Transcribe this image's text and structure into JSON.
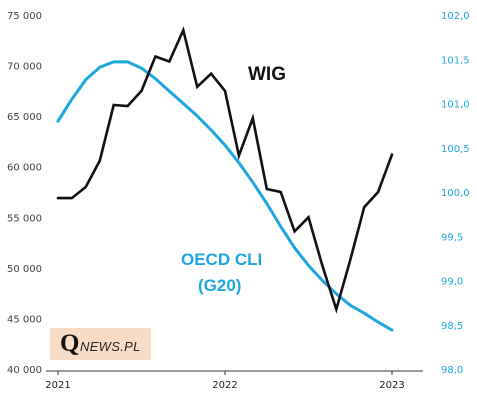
{
  "chart_data": {
    "type": "line",
    "x_ticks": [
      "2021",
      "2022",
      "2023"
    ],
    "y_left": {
      "ticks": [
        "40 000",
        "45 000",
        "50 000",
        "55 000",
        "60 000",
        "65 000",
        "70 000",
        "75 000"
      ],
      "range": [
        40000,
        75000
      ]
    },
    "y_right": {
      "ticks": [
        "98,0",
        "98,5",
        "99,0",
        "99,5",
        "100,0",
        "100,5",
        "101,0",
        "101,5",
        "102,0"
      ],
      "range": [
        98.0,
        102.0
      ]
    },
    "series": [
      {
        "name": "WIG",
        "axis": "left",
        "color": "#111111",
        "x": [
          "2021-01",
          "2021-02",
          "2021-03",
          "2021-04",
          "2021-05",
          "2021-06",
          "2021-07",
          "2021-08",
          "2021-09",
          "2021-10",
          "2021-11",
          "2021-12",
          "2022-01",
          "2022-02",
          "2022-03",
          "2022-04",
          "2022-05",
          "2022-06",
          "2022-07",
          "2022-08",
          "2022-09",
          "2022-10",
          "2022-11",
          "2022-12",
          "2023-01"
        ],
        "values": [
          56900,
          56900,
          58000,
          60600,
          66100,
          66000,
          67500,
          70900,
          70400,
          73500,
          67900,
          69200,
          67500,
          61100,
          64800,
          57800,
          57500,
          53600,
          55000,
          50200,
          45900,
          50800,
          56000,
          57500,
          61200
        ]
      },
      {
        "name": "OECD CLI\n(G20)",
        "axis": "right",
        "color": "#1ea7df",
        "x": [
          "2021-01",
          "2021-02",
          "2021-03",
          "2021-04",
          "2021-05",
          "2021-06",
          "2021-07",
          "2021-08",
          "2021-09",
          "2021-10",
          "2021-11",
          "2021-12",
          "2022-01",
          "2022-02",
          "2022-03",
          "2022-04",
          "2022-05",
          "2022-06",
          "2022-07",
          "2022-08",
          "2022-09",
          "2022-10",
          "2022-11",
          "2022-12",
          "2023-01"
        ],
        "values": [
          100.8,
          101.05,
          101.27,
          101.41,
          101.47,
          101.47,
          101.4,
          101.28,
          101.14,
          101.0,
          100.86,
          100.7,
          100.53,
          100.33,
          100.11,
          99.87,
          99.61,
          99.37,
          99.17,
          99.0,
          98.85,
          98.72,
          98.63,
          98.53,
          98.44
        ]
      }
    ],
    "series_labels": {
      "wig": "WIG",
      "oecd_line1": "OECD CLI",
      "oecd_line2": "(G20)"
    },
    "grid": false
  },
  "logo": {
    "q": "Q",
    "rest": "NEWS.PL"
  }
}
